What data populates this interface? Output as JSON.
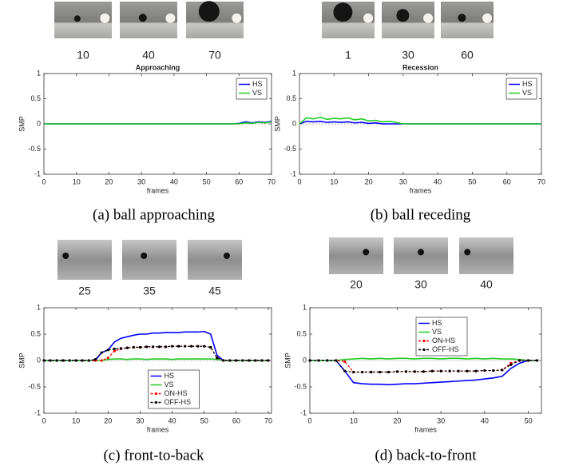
{
  "chart_data": [
    {
      "type": "line",
      "title": "Approaching",
      "caption": "(a) ball approaching",
      "thumbnail_labels": [
        10,
        40,
        70
      ],
      "xlabel": "frames",
      "ylabel": "SMP",
      "xlim": [
        0,
        70
      ],
      "ylim": [
        -1,
        1
      ],
      "xticks": [
        0,
        10,
        20,
        30,
        40,
        50,
        60,
        70
      ],
      "yticks": [
        -1,
        -0.5,
        0,
        0.5,
        1
      ],
      "legend": "upper right",
      "x": [
        0,
        2,
        4,
        6,
        8,
        10,
        12,
        14,
        16,
        18,
        20,
        22,
        24,
        26,
        28,
        30,
        32,
        34,
        36,
        38,
        40,
        42,
        44,
        46,
        48,
        50,
        52,
        54,
        56,
        58,
        60,
        62,
        64,
        66,
        68,
        70
      ],
      "series": [
        {
          "name": "HS",
          "color": "#0000ff",
          "values": [
            0,
            0,
            0,
            0,
            0,
            0,
            0,
            0,
            0,
            0,
            0,
            0,
            0,
            0,
            0,
            0,
            0,
            0,
            0,
            0,
            0,
            0,
            0,
            0,
            0,
            0,
            0,
            0,
            0,
            0,
            0.01,
            0.04,
            0.02,
            0.04,
            0.03,
            0.05
          ]
        },
        {
          "name": "VS",
          "color": "#22cc22",
          "values": [
            0,
            0,
            0,
            0,
            0,
            0,
            0,
            0,
            0,
            0,
            0,
            0,
            0,
            0,
            0,
            0,
            0,
            0,
            0,
            0,
            0,
            0,
            0,
            0,
            0,
            0,
            0,
            0,
            0,
            0,
            0,
            0.02,
            0.01,
            0.03,
            0.02,
            0.04
          ]
        }
      ]
    },
    {
      "type": "line",
      "title": "Recession",
      "caption": "(b) ball receding",
      "thumbnail_labels": [
        1,
        30,
        60
      ],
      "xlabel": "frames",
      "ylabel": "SMP",
      "xlim": [
        0,
        70
      ],
      "ylim": [
        -1,
        1
      ],
      "xticks": [
        0,
        10,
        20,
        30,
        40,
        50,
        60,
        70
      ],
      "yticks": [
        -1,
        -0.5,
        0,
        0.5,
        1
      ],
      "legend": "upper right",
      "x": [
        0,
        2,
        4,
        6,
        8,
        10,
        12,
        14,
        16,
        18,
        20,
        22,
        24,
        26,
        28,
        30,
        32,
        34,
        36,
        38,
        40,
        42,
        44,
        46,
        48,
        50,
        52,
        54,
        56,
        58,
        60,
        62,
        64,
        66,
        68,
        70
      ],
      "series": [
        {
          "name": "HS",
          "color": "#0000ff",
          "values": [
            0,
            0.05,
            0.04,
            0.05,
            0.03,
            0.04,
            0.03,
            0.04,
            0.02,
            0.03,
            0.01,
            0.02,
            0,
            0,
            0,
            0,
            0,
            0,
            0,
            0,
            0,
            0,
            0,
            0,
            0,
            0,
            0,
            0,
            0,
            0,
            0,
            0,
            0,
            0,
            0,
            0
          ]
        },
        {
          "name": "VS",
          "color": "#22cc22",
          "values": [
            0,
            0.12,
            0.1,
            0.13,
            0.09,
            0.11,
            0.1,
            0.12,
            0.08,
            0.1,
            0.06,
            0.07,
            0.04,
            0.05,
            0.03,
            0,
            0,
            0,
            0,
            0,
            0,
            0,
            0,
            0,
            0,
            0,
            0,
            0,
            0,
            0,
            0,
            0,
            0,
            0,
            0,
            0
          ]
        }
      ]
    },
    {
      "type": "line",
      "caption": "(c) front-to-back",
      "thumbnail_labels": [
        25,
        35,
        45
      ],
      "xlabel": "frames",
      "ylabel": "SMP",
      "xlim": [
        0,
        71
      ],
      "ylim": [
        -1,
        1
      ],
      "xticks": [
        0,
        10,
        20,
        30,
        40,
        50,
        60,
        70
      ],
      "yticks": [
        -1,
        -0.5,
        0,
        0.5,
        1
      ],
      "legend": "lower center",
      "x": [
        0,
        2,
        4,
        6,
        8,
        10,
        12,
        14,
        16,
        18,
        20,
        22,
        24,
        26,
        28,
        30,
        32,
        34,
        36,
        38,
        40,
        42,
        44,
        46,
        48,
        50,
        52,
        54,
        56,
        58,
        60,
        62,
        64,
        66,
        68,
        70
      ],
      "series": [
        {
          "name": "HS",
          "color": "#0000ff",
          "values": [
            0,
            0,
            0,
            0,
            0,
            0,
            0,
            0,
            0,
            0.15,
            0.2,
            0.35,
            0.42,
            0.45,
            0.48,
            0.5,
            0.5,
            0.52,
            0.52,
            0.53,
            0.53,
            0.53,
            0.54,
            0.54,
            0.54,
            0.55,
            0.5,
            0.1,
            0,
            0,
            0,
            0,
            0,
            0,
            0,
            0
          ]
        },
        {
          "name": "VS",
          "color": "#22cc22",
          "values": [
            0,
            0,
            0,
            0,
            0,
            0,
            0,
            0,
            0,
            0,
            0.02,
            0.03,
            0.03,
            0.02,
            0.03,
            0.03,
            0.02,
            0.03,
            0.03,
            0.03,
            0.02,
            0.03,
            0.03,
            0.03,
            0.03,
            0.03,
            0.03,
            0.02,
            0,
            0,
            0,
            0,
            0,
            0,
            0,
            0
          ]
        },
        {
          "name": "ON-HS",
          "color": "#ff0000",
          "marker": "o",
          "values": [
            0,
            0,
            0,
            0,
            0,
            0,
            0,
            0,
            0,
            0,
            0.05,
            0.18,
            0.22,
            0.24,
            0.25,
            0.25,
            0.26,
            0.26,
            0.26,
            0.26,
            0.27,
            0.27,
            0.27,
            0.27,
            0.27,
            0.27,
            0.25,
            0.05,
            0,
            0,
            0,
            0,
            0,
            0,
            0,
            0
          ]
        },
        {
          "name": "OFF-HS",
          "color": "#000000",
          "marker": "o",
          "values": [
            0,
            0,
            0,
            0,
            0,
            0,
            0,
            0,
            0.02,
            0.15,
            0.2,
            0.22,
            0.23,
            0.24,
            0.25,
            0.25,
            0.26,
            0.26,
            0.26,
            0.26,
            0.27,
            0.27,
            0.27,
            0.27,
            0.27,
            0.27,
            0.25,
            0.05,
            0,
            0,
            0,
            0,
            0,
            0,
            0,
            0
          ]
        }
      ]
    },
    {
      "type": "line",
      "caption": "(d) back-to-front",
      "thumbnail_labels": [
        20,
        30,
        40
      ],
      "xlabel": "frames",
      "ylabel": "SMP",
      "xlim": [
        0,
        53
      ],
      "ylim": [
        -1,
        1
      ],
      "xticks": [
        0,
        10,
        20,
        30,
        40,
        50
      ],
      "yticks": [
        -1,
        -0.5,
        0,
        0.5,
        1
      ],
      "legend": "upper center",
      "x": [
        0,
        2,
        4,
        6,
        8,
        10,
        12,
        14,
        16,
        18,
        20,
        22,
        24,
        26,
        28,
        30,
        32,
        34,
        36,
        38,
        40,
        42,
        44,
        46,
        48,
        50,
        52
      ],
      "series": [
        {
          "name": "HS",
          "color": "#0000ff",
          "values": [
            0,
            0,
            0,
            0,
            -0.2,
            -0.42,
            -0.44,
            -0.45,
            -0.45,
            -0.46,
            -0.45,
            -0.44,
            -0.44,
            -0.43,
            -0.42,
            -0.41,
            -0.4,
            -0.39,
            -0.38,
            -0.37,
            -0.35,
            -0.33,
            -0.3,
            -0.15,
            -0.05,
            0,
            0
          ]
        },
        {
          "name": "VS",
          "color": "#22cc22",
          "values": [
            0,
            0,
            0,
            0,
            0.02,
            0.03,
            0.04,
            0.03,
            0.04,
            0.03,
            0.04,
            0.04,
            0.03,
            0.04,
            0.04,
            0.03,
            0.04,
            0.04,
            0.03,
            0.04,
            0.03,
            0.04,
            0.03,
            0.03,
            0.02,
            0,
            0
          ]
        },
        {
          "name": "ON-HS",
          "color": "#ff0000",
          "marker": "o",
          "values": [
            0,
            0,
            0,
            0,
            -0.02,
            -0.22,
            -0.22,
            -0.22,
            -0.22,
            -0.22,
            -0.21,
            -0.21,
            -0.21,
            -0.21,
            -0.2,
            -0.2,
            -0.2,
            -0.2,
            -0.2,
            -0.2,
            -0.19,
            -0.19,
            -0.18,
            -0.05,
            0,
            0,
            0
          ]
        },
        {
          "name": "OFF-HS",
          "color": "#000000",
          "marker": "o",
          "values": [
            0,
            0,
            0,
            0,
            -0.2,
            -0.22,
            -0.22,
            -0.22,
            -0.22,
            -0.22,
            -0.21,
            -0.21,
            -0.21,
            -0.21,
            -0.2,
            -0.2,
            -0.2,
            -0.2,
            -0.2,
            -0.2,
            -0.19,
            -0.19,
            -0.18,
            -0.08,
            0,
            0,
            0
          ]
        }
      ]
    }
  ]
}
